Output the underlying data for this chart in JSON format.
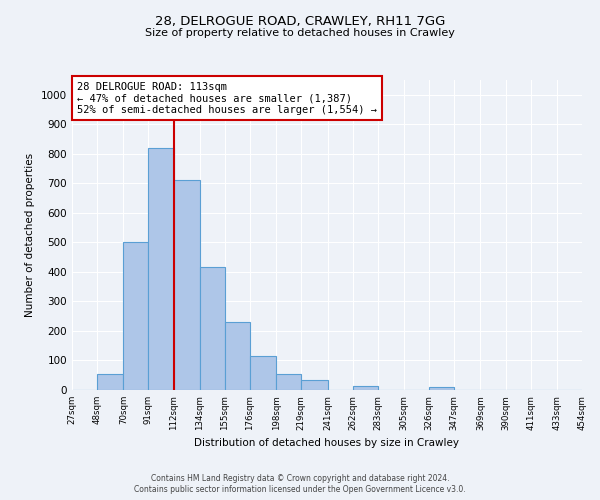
{
  "title": "28, DELROGUE ROAD, CRAWLEY, RH11 7GG",
  "subtitle": "Size of property relative to detached houses in Crawley",
  "xlabel": "Distribution of detached houses by size in Crawley",
  "ylabel": "Number of detached properties",
  "bin_edges": [
    27,
    48,
    70,
    91,
    112,
    134,
    155,
    176,
    198,
    219,
    241,
    262,
    283,
    305,
    326,
    347,
    369,
    390,
    411,
    433,
    454
  ],
  "bar_heights": [
    0,
    55,
    500,
    820,
    710,
    415,
    230,
    115,
    55,
    35,
    0,
    15,
    0,
    0,
    10,
    0,
    0,
    0,
    0,
    0
  ],
  "bar_color": "#aec6e8",
  "bar_edgecolor": "#5a9fd4",
  "bar_linewidth": 0.8,
  "vline_x": 112,
  "vline_color": "#cc0000",
  "vline_linewidth": 1.5,
  "annotation_box_text": "28 DELROGUE ROAD: 113sqm\n← 47% of detached houses are smaller (1,387)\n52% of semi-detached houses are larger (1,554) →",
  "annotation_box_edgecolor": "#cc0000",
  "ylim": [
    0,
    1050
  ],
  "yticks": [
    0,
    100,
    200,
    300,
    400,
    500,
    600,
    700,
    800,
    900,
    1000
  ],
  "bg_color": "#eef2f8",
  "grid_color": "#ffffff",
  "footer_line1": "Contains HM Land Registry data © Crown copyright and database right 2024.",
  "footer_line2": "Contains public sector information licensed under the Open Government Licence v3.0.",
  "tick_labels": [
    "27sqm",
    "48sqm",
    "70sqm",
    "91sqm",
    "112sqm",
    "134sqm",
    "155sqm",
    "176sqm",
    "198sqm",
    "219sqm",
    "241sqm",
    "262sqm",
    "283sqm",
    "305sqm",
    "326sqm",
    "347sqm",
    "369sqm",
    "390sqm",
    "411sqm",
    "433sqm",
    "454sqm"
  ]
}
